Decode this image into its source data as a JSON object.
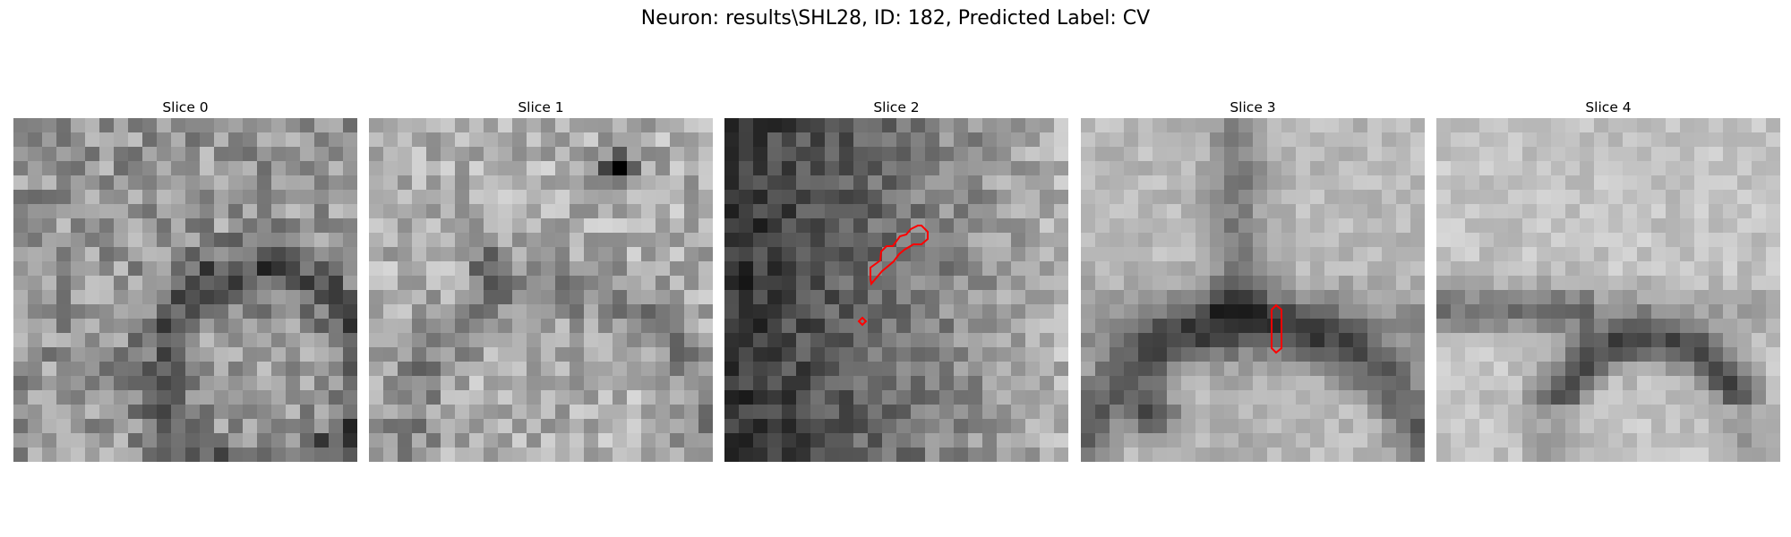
{
  "figure": {
    "title": "Neuron: results\\SHL28, ID: 182, Predicted Label: CV"
  },
  "panels": [
    {
      "title": "Slice 0",
      "tone": "mid",
      "contour": "none"
    },
    {
      "title": "Slice 1",
      "tone": "light",
      "contour": "none"
    },
    {
      "title": "Slice 2",
      "tone": "dark",
      "contour": "diagonal-blob"
    },
    {
      "title": "Slice 3",
      "tone": "light-smooth",
      "contour": "small-vertical"
    },
    {
      "title": "Slice 4",
      "tone": "light-smooth",
      "contour": "none"
    }
  ],
  "colors": {
    "contour": "#ff0000",
    "background": "#ffffff"
  }
}
